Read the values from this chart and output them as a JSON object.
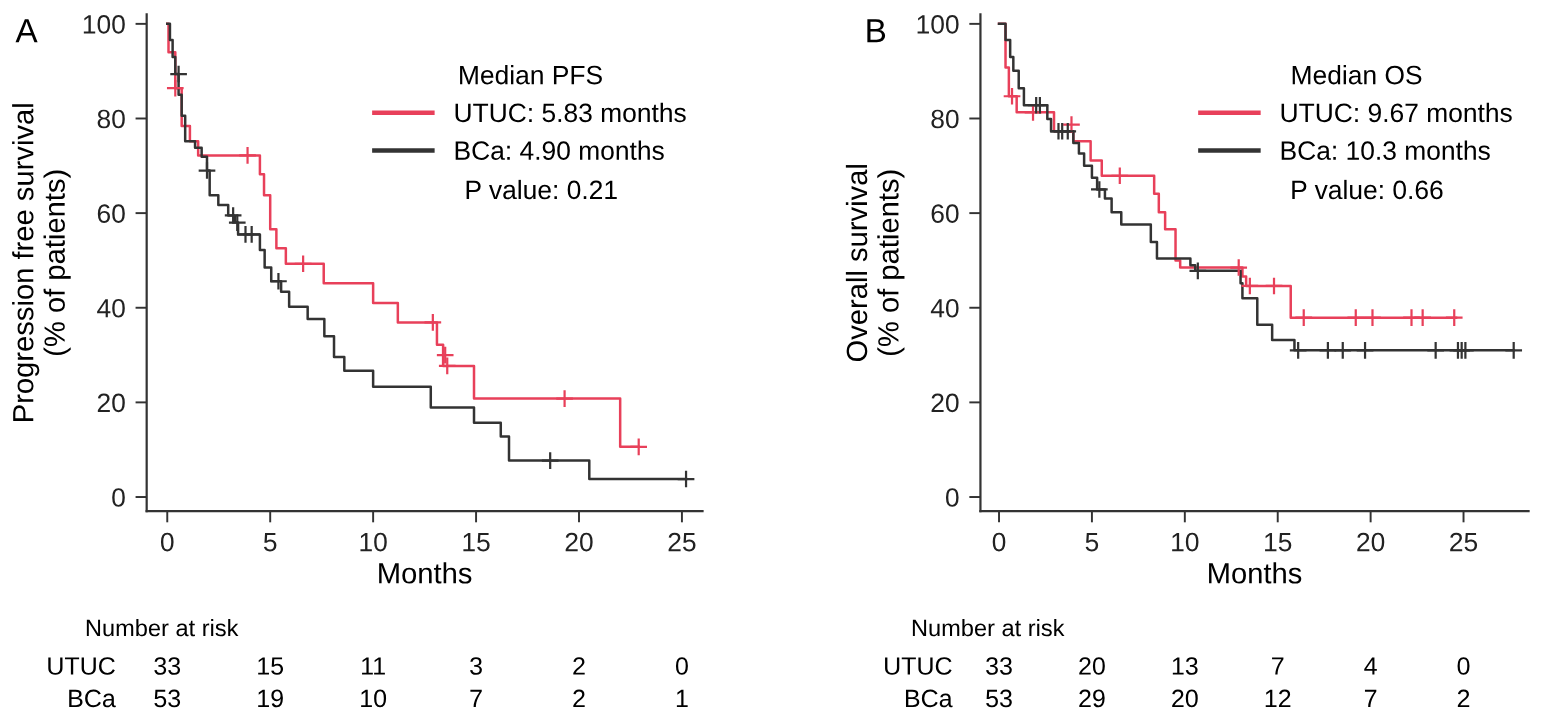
{
  "chart_data": [
    {
      "type": "step",
      "title": "A",
      "xlabel": "Months",
      "ylabel": "Progression free survival\n(% of patients)",
      "legend_title": "Median PFS",
      "legend": "top right",
      "grid": false,
      "xlim": [
        -1,
        26
      ],
      "ylim": [
        -3,
        102
      ],
      "xticks": [
        0,
        5,
        10,
        15,
        20,
        25
      ],
      "yticks": [
        0,
        20,
        40,
        60,
        80,
        100
      ],
      "series": [
        {
          "name": "UTUC: 5.83 months",
          "color": "#e8405a",
          "x": [
            0,
            0.06,
            0.39,
            0.7,
            1.1,
            1.5,
            4.5,
            4.7,
            5.0,
            5.3,
            5.76,
            7.6,
            10.0,
            11.2,
            13.1,
            13.4,
            14.9,
            22.0,
            22.9
          ],
          "values": [
            100,
            94,
            86.4,
            78.4,
            75.2,
            72.2,
            68.2,
            63.8,
            56.6,
            52.6,
            49.3,
            45.2,
            41.0,
            36.9,
            32.2,
            27.7,
            20.8,
            10.6,
            10.6
          ]
        },
        {
          "name": "BCa: 4.90 months",
          "color": "#333333",
          "x": [
            0,
            0.13,
            0.26,
            0.39,
            0.55,
            0.7,
            0.87,
            1.35,
            1.67,
            1.93,
            2.06,
            2.48,
            2.96,
            3.28,
            3.44,
            4.5,
            4.73,
            5.05,
            5.53,
            5.92,
            6.82,
            7.63,
            8.1,
            8.6,
            10.0,
            12.8,
            14.9,
            16.2,
            16.6,
            20.5,
            25.2
          ],
          "values": [
            100,
            96.6,
            93,
            89.4,
            85,
            80.6,
            75.2,
            73.8,
            71.9,
            69,
            63.8,
            61.7,
            59.5,
            58,
            55.5,
            52.2,
            48.5,
            45.6,
            43.4,
            40.2,
            37.6,
            34,
            29.6,
            26.7,
            23.3,
            18.9,
            15.7,
            12.8,
            7.7,
            3.8,
            3.8
          ]
        },
        {
          "type": "scatter",
          "marker": "cross",
          "color": "#e8405a",
          "x": [
            0.39,
            3.9,
            6.6,
            12.9,
            13.5,
            13.6,
            19.3,
            22.9
          ],
          "values": [
            86.4,
            72.2,
            49.3,
            36.9,
            30,
            27.7,
            20.8,
            10.6
          ]
        },
        {
          "type": "scatter",
          "marker": "cross",
          "color": "#333333",
          "x": [
            0.55,
            1.93,
            3.2,
            3.4,
            3.8,
            4.1,
            5.4,
            18.6,
            25.2
          ],
          "values": [
            89.4,
            69,
            59.5,
            58,
            55.5,
            55.5,
            45.6,
            7.7,
            3.8
          ]
        }
      ],
      "annotations": [
        "P value: 0.21",
        "Number at risk",
        "UTUC 33 15 11 3 2 0",
        "BCa 53 19 10 7 2 1"
      ]
    },
    {
      "type": "step",
      "title": "B",
      "xlabel": "Months",
      "ylabel": "Overall survival\n(% of patients)",
      "legend_title": "Median OS",
      "legend": "top right",
      "grid": false,
      "xlim": [
        -1,
        28.5
      ],
      "ylim": [
        -3,
        102
      ],
      "xticks": [
        0,
        5,
        10,
        15,
        20,
        25
      ],
      "yticks": [
        0,
        20,
        40,
        60,
        80,
        100
      ],
      "series": [
        {
          "name": "UTUC: 9.67 months",
          "color": "#e8405a",
          "x": [
            0,
            0.35,
            0.53,
            0.95,
            2.96,
            4.0,
            4.93,
            5.53,
            8.35,
            8.6,
            8.94,
            9.5,
            9.75,
            13.1,
            13.3,
            15.7,
            24.6
          ],
          "values": [
            100,
            90.8,
            84.7,
            81.3,
            77.3,
            75.2,
            71.1,
            67.9,
            64.1,
            60.2,
            56.6,
            50,
            48.5,
            46.6,
            44.6,
            37.9,
            37.9
          ]
        },
        {
          "name": "BCa: 10.3 months",
          "color": "#333333",
          "x": [
            0,
            0.35,
            0.6,
            0.77,
            1.06,
            1.34,
            2.6,
            2.8,
            4.0,
            4.3,
            4.58,
            5.0,
            5.28,
            5.7,
            6.06,
            6.58,
            8.17,
            8.5,
            10.3,
            10.56,
            13.0,
            13.1,
            13.9,
            14.7,
            15.9,
            27.7
          ],
          "values": [
            100,
            96.6,
            93,
            90.1,
            86.4,
            82.8,
            79.9,
            77.3,
            74.8,
            72.6,
            70,
            67.5,
            65,
            63.1,
            60.2,
            57.6,
            53.9,
            50.4,
            49,
            47.8,
            45.2,
            42,
            36.4,
            33.2,
            31,
            31
          ]
        },
        {
          "type": "scatter",
          "marker": "cross",
          "color": "#e8405a",
          "x": [
            0.7,
            1.83,
            3.9,
            6.5,
            12.9,
            13.5,
            14.8,
            16.4,
            19.2,
            20.1,
            22.2,
            22.8,
            24.5
          ],
          "values": [
            84.7,
            81.3,
            78.7,
            67.9,
            48.5,
            44.6,
            44.6,
            37.9,
            37.9,
            37.9,
            37.9,
            37.9,
            37.9
          ]
        },
        {
          "type": "scatter",
          "marker": "cross",
          "color": "#333333",
          "x": [
            2.0,
            2.2,
            3.2,
            3.4,
            3.7,
            5.4,
            10.7,
            16.1,
            17.7,
            18.5,
            19.7,
            23.5,
            24.7,
            24.9,
            25.1,
            27.7
          ],
          "values": [
            82.8,
            82.8,
            77.3,
            77.3,
            77.3,
            65,
            47.8,
            31,
            31,
            31,
            31,
            31,
            31,
            31,
            31,
            31
          ]
        }
      ],
      "annotations": [
        "P value: 0.66",
        "Number at risk",
        "UTUC 33 20 13 7 4 0",
        "BCa 53 29 20 12 7 2"
      ]
    }
  ]
}
